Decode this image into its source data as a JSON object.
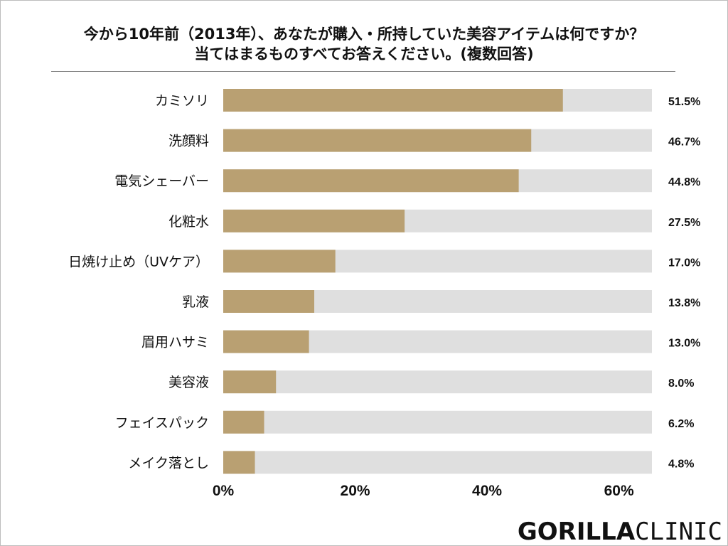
{
  "chart_data": {
    "type": "bar",
    "orientation": "horizontal",
    "title_line1": "今から10年前（2013年）、あなたが購入・所持していた美容アイテムは何ですか？",
    "title_line2": "当てはまるものすべてお答えください。(複数回答)",
    "xlabel": "",
    "ylabel": "",
    "xlim": [
      0,
      65
    ],
    "x_ticks": [
      "0%",
      "20%",
      "40%",
      "60%"
    ],
    "x_tick_values": [
      0,
      20,
      40,
      60
    ],
    "grid": false,
    "categories": [
      "カミソリ",
      "洗顔料",
      "電気シェーバー",
      "化粧水",
      "日焼け止め（UVケア）",
      "乳液",
      "眉用ハサミ",
      "美容液",
      "フェイスパック",
      "メイク落とし"
    ],
    "values": [
      51.5,
      46.7,
      44.8,
      27.5,
      17.0,
      13.8,
      13.0,
      8.0,
      6.2,
      4.8
    ],
    "value_labels": [
      "51.5%",
      "46.7%",
      "44.8%",
      "27.5%",
      "17.0%",
      "13.8%",
      "13.0%",
      "8.0%",
      "6.2%",
      "4.8%"
    ],
    "colors": {
      "bar": "#b9a072",
      "track": "#dfdfdf",
      "text": "#111111"
    }
  },
  "logo": {
    "bold_text": "GORILLA",
    "light_text": "CLINIC"
  }
}
